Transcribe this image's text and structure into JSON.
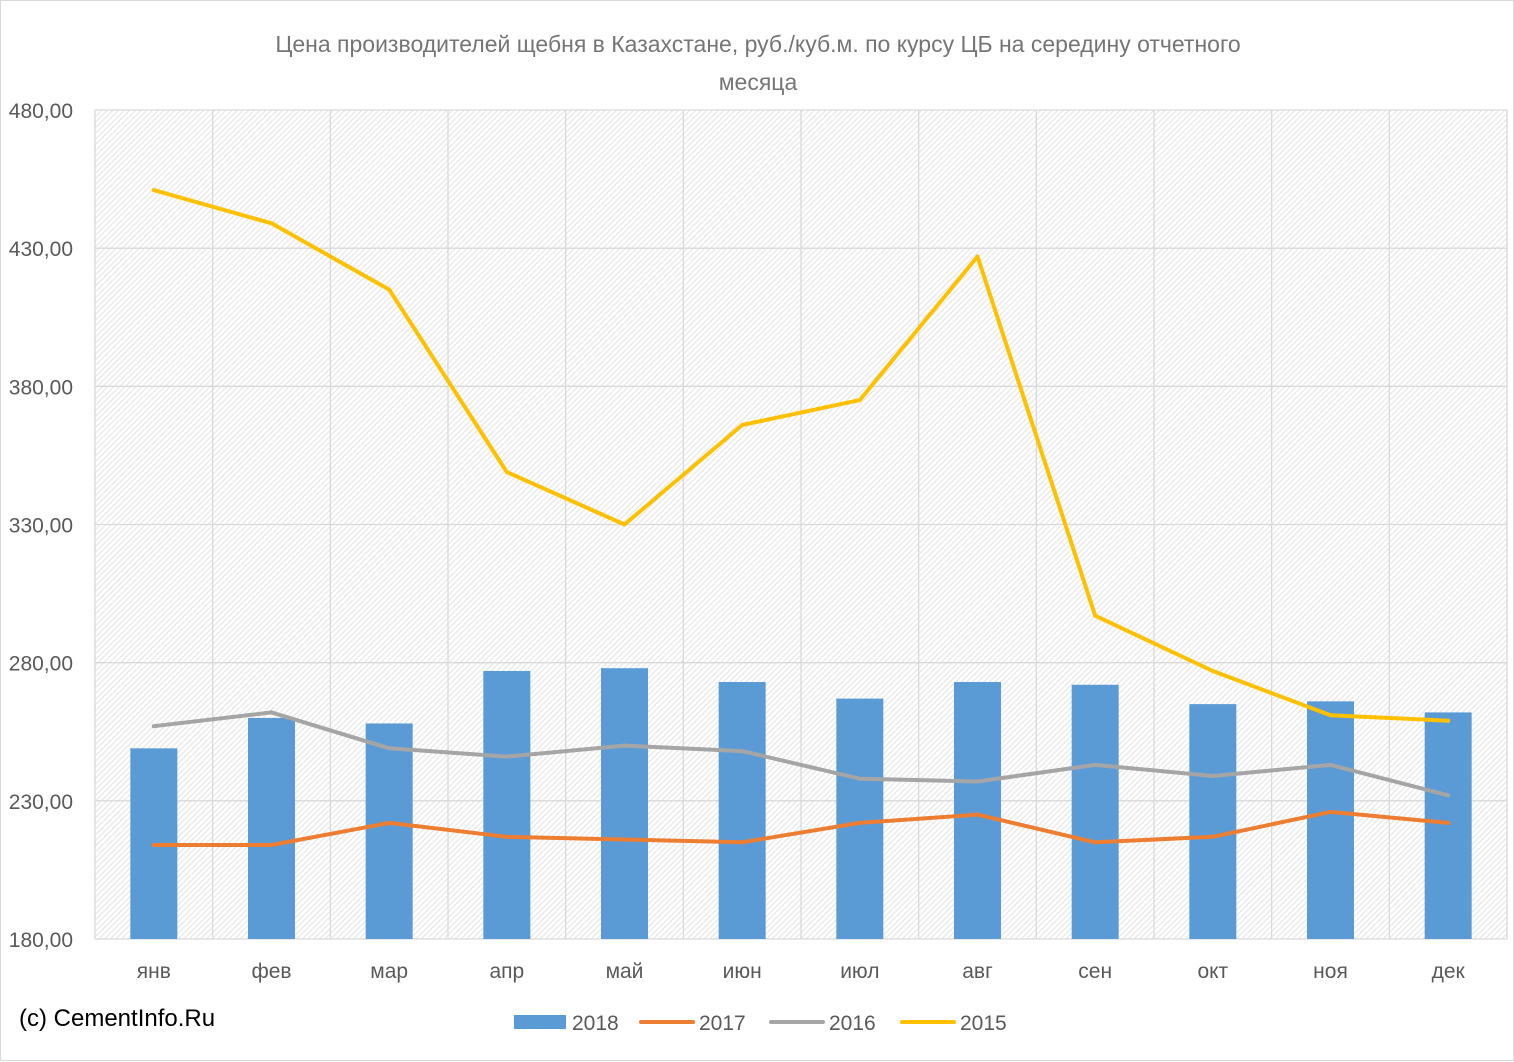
{
  "chart_data": {
    "type": "bar",
    "title_lines": [
      "Цена производителей  щебня в Казахстане, руб./куб.м.  по курсу ЦБ на середину отчетного",
      "месяца"
    ],
    "xlabel": "",
    "ylabel": "",
    "categories": [
      "янв",
      "фев",
      "мар",
      "апр",
      "май",
      "июн",
      "июл",
      "авг",
      "сен",
      "окт",
      "ноя",
      "дек"
    ],
    "ylim": [
      180,
      480
    ],
    "ytick_values": [
      180,
      230,
      280,
      330,
      380,
      430,
      480
    ],
    "ytick_labels": [
      "180,00",
      "230,00",
      "280,00",
      "330,00",
      "380,00",
      "430,00",
      "480,00"
    ],
    "grid": true,
    "legend_position": "bottom",
    "series": [
      {
        "name": "2018",
        "kind": "bar",
        "color": "#5b9bd5",
        "values": [
          249,
          260,
          258,
          277,
          278,
          273,
          267,
          273,
          272,
          265,
          266,
          262
        ]
      },
      {
        "name": "2017",
        "kind": "line",
        "color": "#ed7d31",
        "values": [
          214,
          214,
          222,
          217,
          216,
          215,
          222,
          225,
          215,
          217,
          226,
          222
        ]
      },
      {
        "name": "2016",
        "kind": "line",
        "color": "#a5a5a5",
        "values": [
          257,
          262,
          249,
          246,
          250,
          248,
          238,
          237,
          243,
          239,
          243,
          232
        ]
      },
      {
        "name": "2015",
        "kind": "line",
        "color": "#ffc000",
        "values": [
          451,
          439,
          415,
          349,
          330,
          366,
          375,
          427,
          297,
          277,
          261,
          259
        ]
      }
    ]
  },
  "copyright": "(c) CementInfo.Ru"
}
